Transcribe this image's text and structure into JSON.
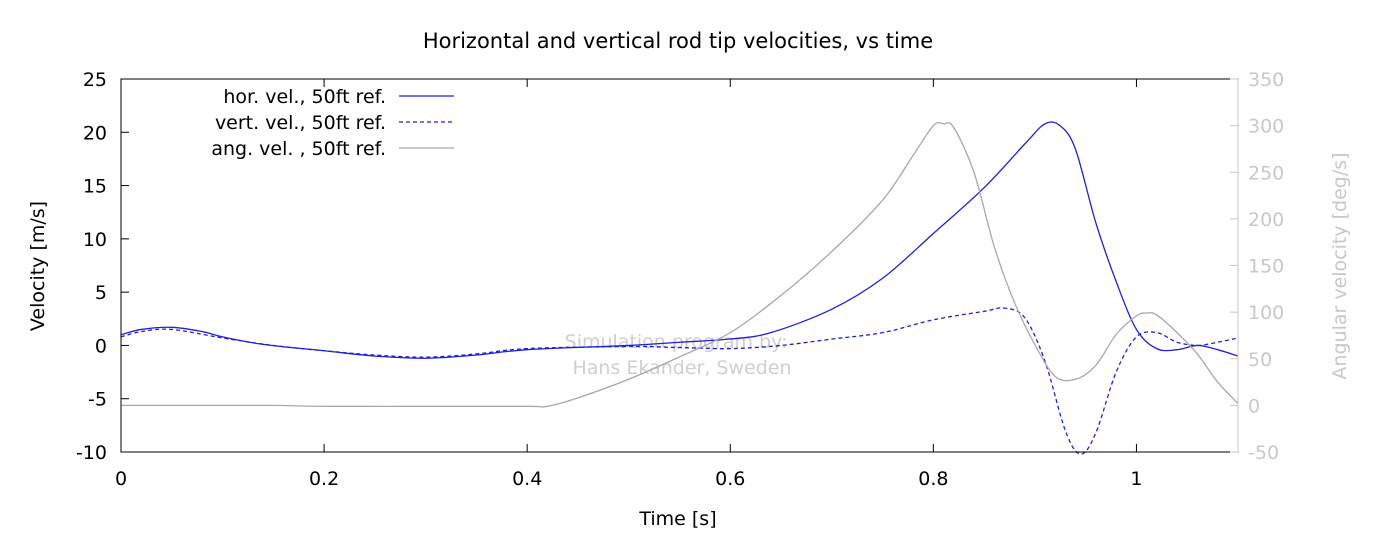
{
  "chart_data": {
    "type": "line",
    "title": "Horizontal and vertical rod tip velocities, vs time",
    "xlabel": "Time [s]",
    "ylabel": "Velocity [m/s]",
    "y2label": "Angular velocity [deg/s]",
    "xlim": [
      0,
      1.1
    ],
    "ylim": [
      -10,
      25
    ],
    "y2lim": [
      -50,
      350
    ],
    "xticks": [
      0,
      0.2,
      0.4,
      0.6,
      0.8,
      1
    ],
    "xtick_labels": [
      "0",
      "0.2",
      "0.4",
      "0.6",
      "0.8",
      "1"
    ],
    "yticks": [
      -10,
      -5,
      0,
      5,
      10,
      15,
      20,
      25
    ],
    "ytick_labels": [
      "-10",
      "-5",
      "0",
      "5",
      "10",
      "15",
      "20",
      "25"
    ],
    "y2ticks": [
      -50,
      0,
      50,
      100,
      150,
      200,
      250,
      300,
      350
    ],
    "y2tick_labels": [
      "-50",
      "0",
      "50",
      "100",
      "150",
      "200",
      "250",
      "300",
      "350"
    ],
    "grid": false,
    "legend_position": "top-left",
    "watermark": [
      "Simulation program by:",
      "Hans Ekander, Sweden"
    ],
    "colors": {
      "blue": "#1f1fdc",
      "gray": "#a8a8a8",
      "axis": "#000000",
      "axis2": "#c8c8c8",
      "watermark": "#cfcfcf"
    },
    "series": [
      {
        "name": "hor. vel., 50ft ref.",
        "axis": "left",
        "style": "solid",
        "color": "#1f1fdc",
        "points": [
          [
            0,
            1.0
          ],
          [
            0.02,
            1.5
          ],
          [
            0.05,
            1.7
          ],
          [
            0.08,
            1.3
          ],
          [
            0.1,
            0.8
          ],
          [
            0.14,
            0.1
          ],
          [
            0.2,
            -0.5
          ],
          [
            0.25,
            -1.0
          ],
          [
            0.3,
            -1.2
          ],
          [
            0.35,
            -0.9
          ],
          [
            0.4,
            -0.4
          ],
          [
            0.5,
            0.0
          ],
          [
            0.55,
            0.3
          ],
          [
            0.6,
            0.6
          ],
          [
            0.64,
            1.2
          ],
          [
            0.7,
            3.4
          ],
          [
            0.75,
            6.3
          ],
          [
            0.8,
            10.5
          ],
          [
            0.85,
            14.8
          ],
          [
            0.89,
            18.9
          ],
          [
            0.91,
            20.8
          ],
          [
            0.925,
            20.6
          ],
          [
            0.94,
            18.4
          ],
          [
            0.96,
            11.5
          ],
          [
            0.98,
            6.0
          ],
          [
            1.0,
            1.5
          ],
          [
            1.02,
            -0.3
          ],
          [
            1.04,
            -0.4
          ],
          [
            1.06,
            0.0
          ],
          [
            1.08,
            -0.4
          ],
          [
            1.1,
            -1.0
          ]
        ]
      },
      {
        "name": "vert. vel., 50ft ref.",
        "axis": "left",
        "style": "dashed",
        "color": "#1f1fdc",
        "points": [
          [
            0,
            0.8
          ],
          [
            0.02,
            1.3
          ],
          [
            0.05,
            1.5
          ],
          [
            0.1,
            0.7
          ],
          [
            0.15,
            0.0
          ],
          [
            0.2,
            -0.5
          ],
          [
            0.25,
            -0.9
          ],
          [
            0.3,
            -1.1
          ],
          [
            0.35,
            -0.8
          ],
          [
            0.4,
            -0.3
          ],
          [
            0.5,
            -0.1
          ],
          [
            0.55,
            -0.2
          ],
          [
            0.6,
            -0.3
          ],
          [
            0.65,
            0.0
          ],
          [
            0.7,
            0.6
          ],
          [
            0.75,
            1.2
          ],
          [
            0.8,
            2.4
          ],
          [
            0.85,
            3.2
          ],
          [
            0.87,
            3.5
          ],
          [
            0.89,
            2.6
          ],
          [
            0.91,
            -1.5
          ],
          [
            0.93,
            -8.0
          ],
          [
            0.945,
            -10.2
          ],
          [
            0.96,
            -8.2
          ],
          [
            0.98,
            -2.5
          ],
          [
            1.0,
            0.8
          ],
          [
            1.02,
            1.2
          ],
          [
            1.04,
            0.3
          ],
          [
            1.06,
            0.0
          ],
          [
            1.08,
            0.3
          ],
          [
            1.1,
            0.7
          ]
        ]
      },
      {
        "name": "ang. vel. , 50ft ref.",
        "axis": "right",
        "style": "solid",
        "color": "#a8a8a8",
        "points": [
          [
            0,
            0
          ],
          [
            0.05,
            0
          ],
          [
            0.1,
            0
          ],
          [
            0.15,
            0
          ],
          [
            0.2,
            -1
          ],
          [
            0.3,
            -1
          ],
          [
            0.4,
            -1
          ],
          [
            0.42,
            -1
          ],
          [
            0.45,
            8
          ],
          [
            0.5,
            28
          ],
          [
            0.55,
            52
          ],
          [
            0.6,
            78
          ],
          [
            0.65,
            118
          ],
          [
            0.7,
            165
          ],
          [
            0.75,
            220
          ],
          [
            0.78,
            268
          ],
          [
            0.8,
            300
          ],
          [
            0.81,
            302
          ],
          [
            0.82,
            298
          ],
          [
            0.84,
            250
          ],
          [
            0.86,
            170
          ],
          [
            0.88,
            110
          ],
          [
            0.9,
            65
          ],
          [
            0.92,
            31
          ],
          [
            0.94,
            28
          ],
          [
            0.96,
            43
          ],
          [
            0.98,
            76
          ],
          [
            1.0,
            96
          ],
          [
            1.01,
            99
          ],
          [
            1.02,
            97
          ],
          [
            1.04,
            78
          ],
          [
            1.06,
            55
          ],
          [
            1.08,
            25
          ],
          [
            1.1,
            2
          ]
        ]
      }
    ]
  }
}
